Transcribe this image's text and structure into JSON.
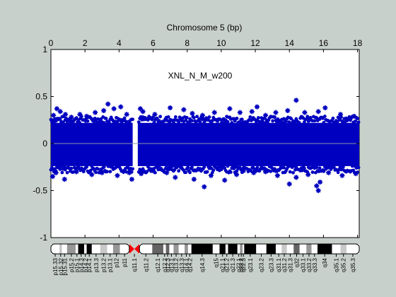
{
  "chart_data": {
    "type": "scatter",
    "title": "Chromosome 5 (bp)",
    "annotation": "XNL_N_M_w200",
    "xlim": [
      0,
      18.1
    ],
    "ylim": [
      -1,
      1
    ],
    "x_ticks": [
      0,
      2,
      4,
      6,
      8,
      10,
      12,
      14,
      16,
      18
    ],
    "x_tick_labels": [
      "0",
      "2",
      "4",
      "6",
      "8",
      "10",
      "12",
      "14",
      "16",
      "18"
    ],
    "x_axis_position": "top",
    "y_ticks": [
      1,
      0.5,
      0,
      -0.5,
      -1
    ],
    "y_tick_labels": [
      "1",
      "0.5",
      "0",
      "-0.5",
      "-1"
    ],
    "zero_line": 0,
    "grid": false,
    "marker_color": "#0000c0",
    "band_start": 0,
    "band_end": 18.1,
    "gap_start": 4.8,
    "gap_end": 5.1,
    "band_upper": 0.22,
    "band_lower": -0.24,
    "outliers": [
      {
        "x": 0.15,
        "y": 0.3
      },
      {
        "x": 0.35,
        "y": 0.37
      },
      {
        "x": 0.55,
        "y": 0.34
      },
      {
        "x": 0.85,
        "y": 0.31
      },
      {
        "x": 1.2,
        "y": 0.28
      },
      {
        "x": 1.7,
        "y": 0.31
      },
      {
        "x": 2.1,
        "y": 0.29
      },
      {
        "x": 2.6,
        "y": 0.33
      },
      {
        "x": 3.1,
        "y": 0.35
      },
      {
        "x": 3.35,
        "y": 0.42
      },
      {
        "x": 3.7,
        "y": 0.37
      },
      {
        "x": 4.1,
        "y": 0.39
      },
      {
        "x": 4.45,
        "y": 0.31
      },
      {
        "x": 5.25,
        "y": 0.37
      },
      {
        "x": 5.4,
        "y": 0.34
      },
      {
        "x": 6.1,
        "y": 0.31
      },
      {
        "x": 7.0,
        "y": 0.38
      },
      {
        "x": 7.8,
        "y": 0.36
      },
      {
        "x": 8.3,
        "y": 0.32
      },
      {
        "x": 8.9,
        "y": 0.3
      },
      {
        "x": 9.6,
        "y": 0.33
      },
      {
        "x": 10.5,
        "y": 0.37
      },
      {
        "x": 11.1,
        "y": 0.33
      },
      {
        "x": 11.8,
        "y": 0.34
      },
      {
        "x": 12.1,
        "y": 0.39
      },
      {
        "x": 12.6,
        "y": 0.3
      },
      {
        "x": 13.2,
        "y": 0.33
      },
      {
        "x": 13.9,
        "y": 0.35
      },
      {
        "x": 14.4,
        "y": 0.46
      },
      {
        "x": 14.9,
        "y": 0.33
      },
      {
        "x": 15.7,
        "y": 0.34
      },
      {
        "x": 16.1,
        "y": 0.38
      },
      {
        "x": 17.0,
        "y": 0.31
      },
      {
        "x": 17.8,
        "y": 0.29
      },
      {
        "x": 0.1,
        "y": -0.35
      },
      {
        "x": 0.3,
        "y": -0.31
      },
      {
        "x": 0.8,
        "y": -0.38
      },
      {
        "x": 1.5,
        "y": -0.3
      },
      {
        "x": 2.4,
        "y": -0.33
      },
      {
        "x": 3.0,
        "y": -0.31
      },
      {
        "x": 3.9,
        "y": -0.34
      },
      {
        "x": 4.6,
        "y": -0.31
      },
      {
        "x": 4.75,
        "y": -0.38
      },
      {
        "x": 5.3,
        "y": -0.32
      },
      {
        "x": 6.0,
        "y": -0.29
      },
      {
        "x": 6.8,
        "y": -0.31
      },
      {
        "x": 7.3,
        "y": -0.36
      },
      {
        "x": 8.4,
        "y": -0.38
      },
      {
        "x": 9.0,
        "y": -0.46
      },
      {
        "x": 9.4,
        "y": -0.34
      },
      {
        "x": 10.2,
        "y": -0.39
      },
      {
        "x": 10.9,
        "y": -0.33
      },
      {
        "x": 11.3,
        "y": -0.29
      },
      {
        "x": 11.9,
        "y": -0.31
      },
      {
        "x": 12.6,
        "y": -0.3
      },
      {
        "x": 13.3,
        "y": -0.34
      },
      {
        "x": 14.0,
        "y": -0.43
      },
      {
        "x": 14.4,
        "y": -0.36
      },
      {
        "x": 15.1,
        "y": -0.33
      },
      {
        "x": 15.6,
        "y": -0.45
      },
      {
        "x": 15.7,
        "y": -0.5
      },
      {
        "x": 15.8,
        "y": -0.41
      },
      {
        "x": 16.3,
        "y": -0.31
      },
      {
        "x": 17.1,
        "y": -0.34
      },
      {
        "x": 17.9,
        "y": -0.32
      }
    ]
  },
  "ideogram": {
    "bands": [
      {
        "label": "p15.33",
        "start": 0.0,
        "end": 0.5,
        "stain": "gneg"
      },
      {
        "label": "p15.32",
        "start": 0.5,
        "end": 0.65,
        "stain": "gpos25"
      },
      {
        "label": "p15.31",
        "start": 0.65,
        "end": 0.95,
        "stain": "gneg"
      },
      {
        "label": "p15.2",
        "start": 0.95,
        "end": 1.45,
        "stain": "gpos50"
      },
      {
        "label": "p15.1",
        "start": 1.45,
        "end": 1.6,
        "stain": "gneg"
      },
      {
        "label": "p14.3",
        "start": 1.6,
        "end": 1.95,
        "stain": "gpos100"
      },
      {
        "label": "p14.2",
        "start": 1.95,
        "end": 2.1,
        "stain": "gneg"
      },
      {
        "label": "p14.1",
        "start": 2.1,
        "end": 2.4,
        "stain": "gpos100"
      },
      {
        "label": "p13.3",
        "start": 2.4,
        "end": 2.9,
        "stain": "gneg"
      },
      {
        "label": "p13.2",
        "start": 2.9,
        "end": 3.3,
        "stain": "gpos25"
      },
      {
        "label": "p13.1",
        "start": 3.3,
        "end": 3.65,
        "stain": "gneg"
      },
      {
        "label": "p12",
        "start": 3.65,
        "end": 4.05,
        "stain": "gpos50"
      },
      {
        "label": "p11",
        "start": 4.05,
        "end": 4.6,
        "stain": "gneg"
      },
      {
        "label": "q11.1",
        "start": 4.6,
        "end": 5.2,
        "stain": "acen"
      },
      {
        "label": "q11.2",
        "start": 5.2,
        "end": 5.95,
        "stain": "gneg"
      },
      {
        "label": "q12.1",
        "start": 5.95,
        "end": 6.6,
        "stain": "gpos75"
      },
      {
        "label": "q12.2",
        "start": 6.6,
        "end": 6.75,
        "stain": "gneg"
      },
      {
        "label": "q12.3",
        "start": 6.75,
        "end": 6.95,
        "stain": "gpos75"
      },
      {
        "label": "q13.1",
        "start": 6.95,
        "end": 7.2,
        "stain": "gneg"
      },
      {
        "label": "q13.2",
        "start": 7.2,
        "end": 7.5,
        "stain": "gpos50"
      },
      {
        "label": "q13.3",
        "start": 7.5,
        "end": 7.85,
        "stain": "gneg"
      },
      {
        "label": "q14.1",
        "start": 7.85,
        "end": 8.05,
        "stain": "gpos50"
      },
      {
        "label": "q14.2",
        "start": 8.05,
        "end": 8.25,
        "stain": "gneg"
      },
      {
        "label": "q14.3",
        "start": 8.25,
        "end": 9.5,
        "stain": "gpos100"
      },
      {
        "label": "q15",
        "start": 9.5,
        "end": 9.9,
        "stain": "gneg"
      },
      {
        "label": "q21.1",
        "start": 9.9,
        "end": 10.25,
        "stain": "gpos100"
      },
      {
        "label": "q21.2",
        "start": 10.25,
        "end": 10.4,
        "stain": "gneg"
      },
      {
        "label": "q21.3",
        "start": 10.4,
        "end": 10.95,
        "stain": "gpos100"
      },
      {
        "label": "q22.1",
        "start": 10.95,
        "end": 11.1,
        "stain": "gneg"
      },
      {
        "label": "q22.2",
        "start": 11.1,
        "end": 11.25,
        "stain": "gpos50"
      },
      {
        "label": "q22.3",
        "start": 11.25,
        "end": 11.35,
        "stain": "gneg"
      },
      {
        "label": "q23.1",
        "start": 11.35,
        "end": 12.05,
        "stain": "gpos100"
      },
      {
        "label": "q23.2",
        "start": 12.05,
        "end": 12.65,
        "stain": "gneg"
      },
      {
        "label": "q23.3",
        "start": 12.65,
        "end": 13.2,
        "stain": "gpos100"
      },
      {
        "label": "q31.1",
        "start": 13.2,
        "end": 13.55,
        "stain": "gneg"
      },
      {
        "label": "q31.2",
        "start": 13.55,
        "end": 13.85,
        "stain": "gpos25"
      },
      {
        "label": "q31.3",
        "start": 13.85,
        "end": 14.25,
        "stain": "gneg"
      },
      {
        "label": "q32",
        "start": 14.25,
        "end": 14.6,
        "stain": "gpos75"
      },
      {
        "label": "q33.1",
        "start": 14.6,
        "end": 15.0,
        "stain": "gneg"
      },
      {
        "label": "q33.2",
        "start": 15.0,
        "end": 15.3,
        "stain": "gpos50"
      },
      {
        "label": "q33.3",
        "start": 15.3,
        "end": 15.65,
        "stain": "gneg"
      },
      {
        "label": "q34",
        "start": 15.65,
        "end": 16.5,
        "stain": "gpos100"
      },
      {
        "label": "q35.1",
        "start": 16.5,
        "end": 17.0,
        "stain": "gneg"
      },
      {
        "label": "q35.2",
        "start": 17.0,
        "end": 17.35,
        "stain": "gpos25"
      },
      {
        "label": "q35.3",
        "start": 17.35,
        "end": 18.1,
        "stain": "gneg"
      }
    ],
    "stain_colors": {
      "gneg": "#ffffff",
      "gpos25": "#c8c8c8",
      "gpos50": "#969696",
      "gpos75": "#646464",
      "gpos100": "#000000",
      "acen": "#ff0000"
    }
  }
}
